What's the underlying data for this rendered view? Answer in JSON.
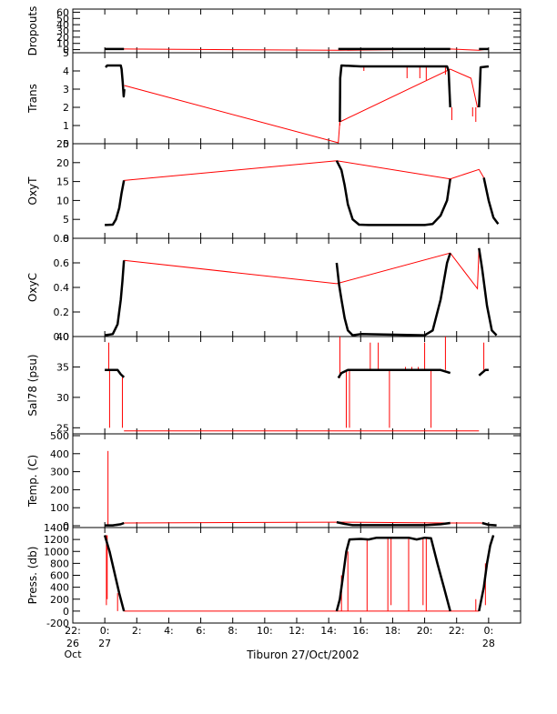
{
  "figure": {
    "xlabel": "Tiburon 27/Oct/2002",
    "x_ticks": [
      {
        "hour": -2,
        "label": "22:",
        "sub": [
          "26",
          "Oct"
        ]
      },
      {
        "hour": 0,
        "label": "0:",
        "sub": [
          "27"
        ]
      },
      {
        "hour": 2,
        "label": "2:",
        "sub": []
      },
      {
        "hour": 4,
        "label": "4:",
        "sub": []
      },
      {
        "hour": 6,
        "label": "6:",
        "sub": []
      },
      {
        "hour": 8,
        "label": "8:",
        "sub": []
      },
      {
        "hour": 10,
        "label": "10:",
        "sub": []
      },
      {
        "hour": 12,
        "label": "12:",
        "sub": []
      },
      {
        "hour": 14,
        "label": "14:",
        "sub": []
      },
      {
        "hour": 16,
        "label": "16:",
        "sub": []
      },
      {
        "hour": 18,
        "label": "18:",
        "sub": []
      },
      {
        "hour": 20,
        "label": "20:",
        "sub": []
      },
      {
        "hour": 22,
        "label": "22:",
        "sub": []
      },
      {
        "hour": 24,
        "label": "0:",
        "sub": [
          "28"
        ]
      }
    ],
    "xlim_hours": [
      -2,
      26
    ],
    "colors": {
      "data": "#000000",
      "gap_line": "#ff0000",
      "axis": "#000000"
    }
  },
  "chart_data": [
    {
      "type": "line",
      "ylabel": "Dropouts",
      "ylim": [
        -5,
        65
      ],
      "ticks": [
        0,
        10,
        20,
        30,
        40,
        50,
        60
      ],
      "black_segments": [
        [
          [
            0,
            1
          ],
          [
            1.2,
            1
          ]
        ],
        [
          [
            14.6,
            1
          ],
          [
            21.6,
            1
          ]
        ],
        [
          [
            23.4,
            1
          ],
          [
            24,
            1
          ]
        ]
      ],
      "red_line": [
        [
          0,
          1
        ],
        [
          1.2,
          1
        ],
        [
          14.6,
          -1
        ],
        [
          21.6,
          1
        ],
        [
          23.4,
          -1
        ],
        [
          24,
          1
        ]
      ],
      "red_spikes": []
    },
    {
      "type": "line",
      "ylabel": "Trans",
      "ylim": [
        0,
        5
      ],
      "ticks": [
        0,
        1,
        2,
        3,
        4,
        5
      ],
      "black_segments": [
        [
          [
            0.05,
            4.2
          ],
          [
            0.15,
            4.3
          ],
          [
            1.0,
            4.3
          ],
          [
            1.05,
            4.1
          ],
          [
            1.12,
            3.4
          ],
          [
            1.18,
            2.6
          ],
          [
            1.22,
            3.0
          ]
        ],
        [
          [
            14.7,
            1.2
          ],
          [
            14.72,
            3.6
          ],
          [
            14.8,
            4.3
          ],
          [
            16,
            4.25
          ],
          [
            18,
            4.25
          ],
          [
            20,
            4.25
          ],
          [
            21.4,
            4.25
          ],
          [
            21.5,
            4.0
          ],
          [
            21.6,
            2.0
          ]
        ],
        [
          [
            23.4,
            2.0
          ],
          [
            23.5,
            4.2
          ],
          [
            24,
            4.25
          ]
        ]
      ],
      "red_line": [
        [
          1.22,
          3.2
        ],
        [
          14.6,
          0.05
        ],
        [
          14.7,
          1.2
        ],
        [
          21.6,
          4.1
        ],
        [
          22.9,
          3.6
        ],
        [
          23.3,
          2.0
        ]
      ],
      "red_spikes": [
        [
          14.7,
          1.0
        ],
        [
          16.2,
          4.0
        ],
        [
          18.9,
          3.6
        ],
        [
          19.7,
          3.6
        ],
        [
          20.1,
          3.5
        ],
        [
          21.3,
          3.8
        ],
        [
          21.7,
          1.3
        ],
        [
          23.0,
          1.5
        ],
        [
          23.2,
          1.2
        ]
      ]
    },
    {
      "type": "line",
      "ylabel": "OxyT",
      "ylim": [
        0,
        25
      ],
      "ticks": [
        0,
        5,
        10,
        15,
        20,
        25
      ],
      "black_segments": [
        [
          [
            0,
            3.5
          ],
          [
            0.5,
            3.6
          ],
          [
            0.7,
            5
          ],
          [
            0.9,
            8
          ],
          [
            1.05,
            12
          ],
          [
            1.2,
            15.3
          ]
        ],
        [
          [
            14.5,
            20.5
          ],
          [
            14.8,
            18
          ],
          [
            15.0,
            14
          ],
          [
            15.2,
            9
          ],
          [
            15.5,
            5
          ],
          [
            15.9,
            3.6
          ],
          [
            16.5,
            3.5
          ],
          [
            20,
            3.5
          ],
          [
            20.5,
            3.8
          ],
          [
            21.0,
            6
          ],
          [
            21.4,
            10
          ],
          [
            21.6,
            15.7
          ]
        ],
        [
          [
            23.7,
            16
          ],
          [
            24.0,
            10
          ],
          [
            24.3,
            5.5
          ],
          [
            24.6,
            3.8
          ]
        ]
      ],
      "red_line": [
        [
          1.2,
          15.3
        ],
        [
          14.5,
          20.5
        ],
        [
          21.6,
          15.7
        ],
        [
          23.4,
          18.2
        ],
        [
          23.7,
          16
        ]
      ],
      "red_spikes": []
    },
    {
      "type": "line",
      "ylabel": "OxyC",
      "ylim": [
        0,
        0.8
      ],
      "ticks": [
        0.0,
        0.2,
        0.4,
        0.6,
        0.8
      ],
      "black_segments": [
        [
          [
            0,
            0.01
          ],
          [
            0.5,
            0.02
          ],
          [
            0.8,
            0.1
          ],
          [
            1.0,
            0.3
          ],
          [
            1.1,
            0.45
          ],
          [
            1.2,
            0.62
          ]
        ],
        [
          [
            14.5,
            0.6
          ],
          [
            14.65,
            0.42
          ],
          [
            14.8,
            0.3
          ],
          [
            15.0,
            0.15
          ],
          [
            15.2,
            0.05
          ],
          [
            15.5,
            0.01
          ],
          [
            16,
            0.02
          ],
          [
            20,
            0.01
          ],
          [
            20.5,
            0.05
          ],
          [
            21.0,
            0.3
          ],
          [
            21.4,
            0.6
          ],
          [
            21.6,
            0.68
          ]
        ],
        [
          [
            23.4,
            0.72
          ],
          [
            23.6,
            0.55
          ],
          [
            23.9,
            0.25
          ],
          [
            24.2,
            0.05
          ],
          [
            24.5,
            0.01
          ]
        ]
      ],
      "red_line": [
        [
          1.2,
          0.62
        ],
        [
          14.5,
          0.43
        ],
        [
          21.6,
          0.68
        ],
        [
          23.3,
          0.39
        ],
        [
          23.4,
          0.72
        ]
      ],
      "red_spikes": []
    },
    {
      "type": "line",
      "ylabel": "Sal78 (psu)",
      "ylim": [
        24,
        40
      ],
      "ticks": [
        25,
        30,
        35,
        40
      ],
      "black_segments": [
        [
          [
            0,
            34.5
          ],
          [
            0.8,
            34.5
          ],
          [
            1.0,
            33.8
          ],
          [
            1.2,
            33.3
          ]
        ],
        [
          [
            14.6,
            33.2
          ],
          [
            14.8,
            34.0
          ],
          [
            15.2,
            34.5
          ],
          [
            21.0,
            34.5
          ],
          [
            21.6,
            34.0
          ]
        ],
        [
          [
            23.4,
            33.6
          ],
          [
            23.8,
            34.5
          ],
          [
            24.0,
            34.5
          ]
        ]
      ],
      "red_line": [
        [
          1.2,
          24.5
        ],
        [
          14.6,
          24.5
        ],
        [
          21.6,
          24.5
        ],
        [
          23.4,
          24.5
        ]
      ],
      "red_spikes": [
        [
          0.25,
          39
        ],
        [
          0.3,
          25
        ],
        [
          1.1,
          25
        ],
        [
          14.7,
          40
        ],
        [
          15.1,
          25
        ],
        [
          15.3,
          25
        ],
        [
          16.6,
          39
        ],
        [
          17.1,
          39
        ],
        [
          17.8,
          25
        ],
        [
          18.8,
          35
        ],
        [
          19.2,
          35
        ],
        [
          19.6,
          35
        ],
        [
          20.0,
          39
        ],
        [
          20.4,
          25
        ],
        [
          21.3,
          40
        ],
        [
          23.7,
          39
        ]
      ]
    },
    {
      "type": "line",
      "ylabel": "Temp. (C)",
      "ylim": [
        -10,
        510
      ],
      "ticks": [
        0,
        100,
        200,
        300,
        400,
        500
      ],
      "black_segments": [
        [
          [
            0,
            2
          ],
          [
            0.5,
            2
          ],
          [
            1.0,
            8
          ],
          [
            1.2,
            15
          ]
        ],
        [
          [
            14.5,
            20
          ],
          [
            15,
            10
          ],
          [
            15.5,
            3
          ],
          [
            20,
            3
          ],
          [
            21.0,
            8
          ],
          [
            21.6,
            15
          ]
        ],
        [
          [
            23.6,
            15
          ],
          [
            24,
            5
          ],
          [
            24.5,
            2
          ]
        ]
      ],
      "red_line": [
        [
          1.2,
          15
        ],
        [
          14.5,
          20
        ],
        [
          21.6,
          15
        ],
        [
          23.6,
          15
        ]
      ],
      "red_spikes": [
        [
          0.2,
          415
        ]
      ]
    },
    {
      "type": "line",
      "ylabel": "Press. (db)",
      "ylim": [
        -200,
        1400
      ],
      "ticks": [
        -200,
        0,
        200,
        400,
        600,
        800,
        1000,
        1200,
        1400
      ],
      "black_segments": [
        [
          [
            0,
            1270
          ],
          [
            0.3,
            1000
          ],
          [
            0.6,
            650
          ],
          [
            0.9,
            300
          ],
          [
            1.2,
            0
          ]
        ],
        [
          [
            14.5,
            0
          ],
          [
            14.7,
            200
          ],
          [
            14.9,
            600
          ],
          [
            15.1,
            1000
          ],
          [
            15.3,
            1200
          ],
          [
            16,
            1210
          ],
          [
            16.5,
            1200
          ],
          [
            17,
            1230
          ],
          [
            19,
            1230
          ],
          [
            19.5,
            1200
          ],
          [
            20,
            1230
          ],
          [
            20.4,
            1220
          ],
          [
            20.8,
            800
          ],
          [
            21.2,
            400
          ],
          [
            21.6,
            0
          ]
        ],
        [
          [
            23.4,
            0
          ],
          [
            23.7,
            400
          ],
          [
            23.9,
            800
          ],
          [
            24.1,
            1100
          ],
          [
            24.3,
            1270
          ]
        ]
      ],
      "red_line": [
        [
          1.2,
          0
        ],
        [
          14.5,
          0
        ],
        [
          21.6,
          0
        ],
        [
          23.4,
          0
        ]
      ],
      "red_spikes": [
        [
          0.1,
          100
        ],
        [
          0.15,
          200
        ],
        [
          0.8,
          0
        ],
        [
          14.8,
          0
        ],
        [
          15.2,
          0
        ],
        [
          16.4,
          0
        ],
        [
          17.7,
          0
        ],
        [
          17.9,
          100
        ],
        [
          19.0,
          0
        ],
        [
          19.9,
          100
        ],
        [
          20.1,
          0
        ],
        [
          21.5,
          0
        ],
        [
          23.2,
          200
        ],
        [
          23.8,
          100
        ]
      ]
    }
  ]
}
